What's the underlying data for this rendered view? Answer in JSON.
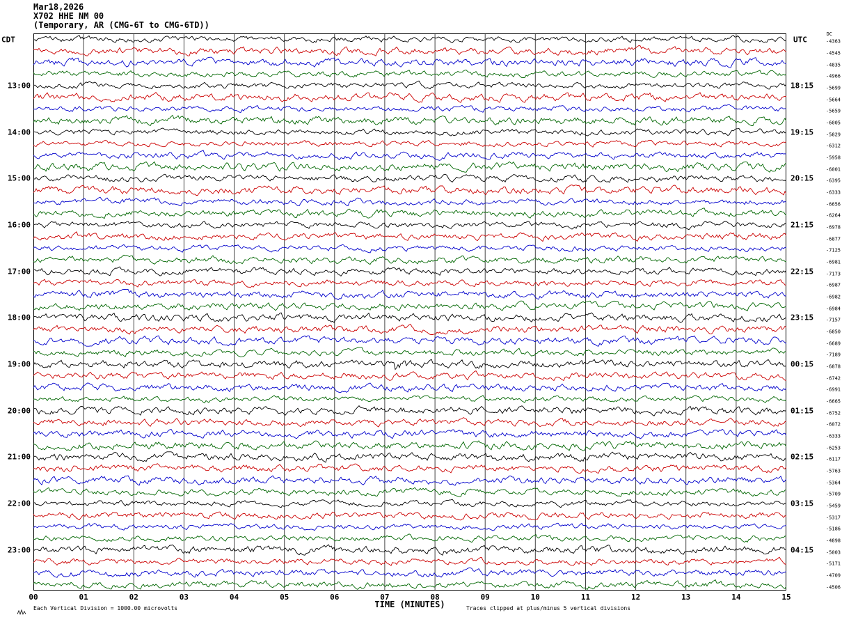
{
  "header": {
    "date": "Mar18,2026",
    "station": "X702 HHE NM 00",
    "description": "(Temporary, AR (CMG-6T to CMG-6TD))"
  },
  "footer": {
    "left_note": "Each Vertical Division = 1000.00 microvolts",
    "xaxis_title": "TIME (MINUTES)",
    "right_note": "Traces clipped at plus/minus 5 vertical divisions"
  },
  "chart_data": {
    "type": "line",
    "subtype": "helicorder seismogram drum plot, 48 stacked 15-minute noise traces",
    "title": "X702 HHE NM 00",
    "left_axis_label": "CDT",
    "right_axis_label": "UTC",
    "xlabel": "TIME (MINUTES)",
    "x_range_minutes": [
      0,
      15
    ],
    "x_ticks": [
      "00",
      "01",
      "02",
      "03",
      "04",
      "05",
      "06",
      "07",
      "08",
      "09",
      "10",
      "11",
      "12",
      "13",
      "14",
      "15"
    ],
    "row_count": 48,
    "rows_per_hour": 4,
    "first_labeled_row": 4,
    "trace_color_cycle": [
      "#000000",
      "#cc0000",
      "#0000cc",
      "#006600"
    ],
    "left_hour_labels": [
      "13:00",
      "14:00",
      "15:00",
      "16:00",
      "17:00",
      "18:00",
      "19:00",
      "20:00",
      "21:00",
      "22:00",
      "23:00"
    ],
    "right_hour_labels": [
      "18:15",
      "19:15",
      "20:15",
      "21:15",
      "22:15",
      "23:15",
      "00:15",
      "01:15",
      "02:15",
      "03:15",
      "04:15"
    ],
    "dc_label": "DC",
    "dc_offsets": [
      -4363,
      -4545,
      -4835,
      -4966,
      -5699,
      -5664,
      -5659,
      -6005,
      -5829,
      -6312,
      -5958,
      -6001,
      -6395,
      -6333,
      -6656,
      -6264,
      -6978,
      -6877,
      -7125,
      -6981,
      -7173,
      -6987,
      -6982,
      -6984,
      -7157,
      -6850,
      -6689,
      -7189,
      -6878,
      -6742,
      -6991,
      -6665,
      -6752,
      -6072,
      -6333,
      -6253,
      -6117,
      -5763,
      -5364,
      -5709,
      -5459,
      -5317,
      -5186,
      -4898,
      -5003,
      -5171,
      -4709,
      -4506
    ],
    "noise": {
      "amplitude_divisions": 1,
      "clip_divisions": 5
    },
    "event": {
      "row_index": 28,
      "row_label_cdt": "19:00",
      "row_label_utc": "00:15",
      "minute": 7.3,
      "description": "small high-amplitude burst on the 19:00 CDT black trace near minute 7.3"
    }
  },
  "layout_colors": {
    "background": "#ffffff",
    "grid": "#444444",
    "border": "#000000",
    "text": "#000000"
  }
}
